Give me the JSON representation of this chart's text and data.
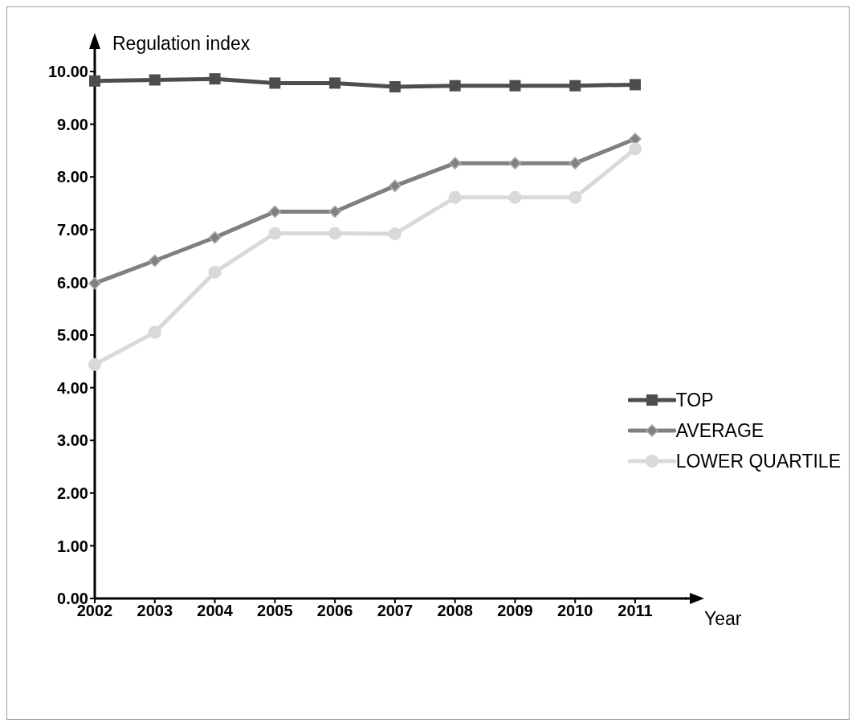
{
  "chart_data": {
    "type": "line",
    "xlabel": "Year",
    "ylabel": "Regulation index",
    "categories": [
      "2002",
      "2003",
      "2004",
      "2005",
      "2006",
      "2007",
      "2008",
      "2009",
      "2010",
      "2011"
    ],
    "series": [
      {
        "name": "TOP",
        "color": "#4d4d4d",
        "marker": "square",
        "values": [
          9.82,
          9.84,
          9.86,
          9.78,
          9.78,
          9.71,
          9.73,
          9.73,
          9.73,
          9.75
        ]
      },
      {
        "name": "AVERAGE",
        "color": "#808080",
        "marker": "diamond",
        "values": [
          5.98,
          6.41,
          6.85,
          7.34,
          7.34,
          7.83,
          8.26,
          8.26,
          8.26,
          8.72
        ]
      },
      {
        "name": "LOWER QUARTILE",
        "color": "#d9d9d9",
        "marker": "circle",
        "values": [
          4.44,
          5.05,
          6.19,
          6.93,
          6.93,
          6.92,
          7.61,
          7.61,
          7.61,
          8.53
        ]
      }
    ],
    "ylim": [
      0,
      10
    ],
    "yticks": [
      {
        "value": 0,
        "label": "0.00"
      },
      {
        "value": 1,
        "label": "1.00"
      },
      {
        "value": 2,
        "label": "2.00"
      },
      {
        "value": 3,
        "label": "3.00"
      },
      {
        "value": 4,
        "label": "4.00"
      },
      {
        "value": 5,
        "label": "5.00"
      },
      {
        "value": 6,
        "label": "6.00"
      },
      {
        "value": 7,
        "label": "7.00"
      },
      {
        "value": 8,
        "label": "8.00"
      },
      {
        "value": 9,
        "label": "9.00"
      },
      {
        "value": 10,
        "label": "10.00"
      }
    ],
    "grid": false,
    "legend": "right",
    "line_style": "solid"
  }
}
